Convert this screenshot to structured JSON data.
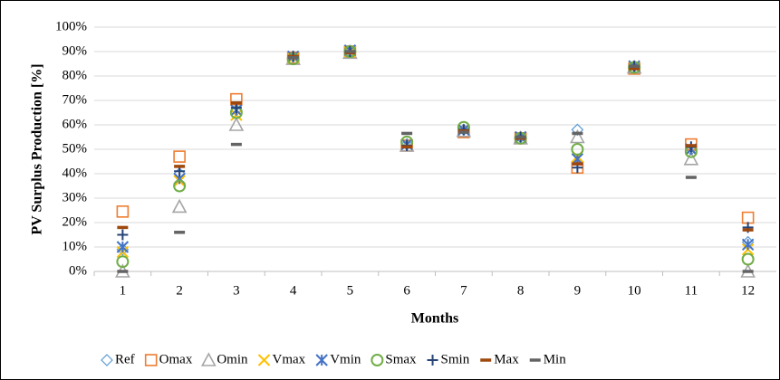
{
  "chart_data": {
    "type": "scatter",
    "y_label": "PV Surplus Production [%]",
    "x_label": "Months",
    "categories": [
      "1",
      "2",
      "3",
      "4",
      "5",
      "6",
      "7",
      "8",
      "9",
      "10",
      "11",
      "12"
    ],
    "ylim": [
      0,
      100
    ],
    "yticks": [
      {
        "value": 0,
        "label": "0%"
      },
      {
        "value": 10,
        "label": "10%"
      },
      {
        "value": 20,
        "label": "20%"
      },
      {
        "value": 30,
        "label": "30%"
      },
      {
        "value": 40,
        "label": "40%"
      },
      {
        "value": 50,
        "label": "50%"
      },
      {
        "value": 60,
        "label": "60%"
      },
      {
        "value": 70,
        "label": "70%"
      },
      {
        "value": 80,
        "label": "80%"
      },
      {
        "value": 90,
        "label": "90%"
      },
      {
        "value": 100,
        "label": "100%"
      }
    ],
    "grid": true,
    "legend": "bottom",
    "series": [
      {
        "name": "Ref",
        "color": "#5b9bd5",
        "marker": "diamond",
        "values": [
          9,
          40,
          66,
          88,
          90,
          52,
          58,
          55,
          58,
          84,
          50,
          12
        ]
      },
      {
        "name": "Omax",
        "color": "#ed7d31",
        "marker": "square",
        "values": [
          24.5,
          47,
          70.5,
          87.5,
          90,
          51.5,
          57,
          54.5,
          42.5,
          83,
          52,
          22
        ]
      },
      {
        "name": "Omin",
        "color": "#a5a5a5",
        "marker": "triangle",
        "values": [
          0,
          26.5,
          60,
          87,
          89.5,
          51.5,
          57.5,
          54.5,
          55,
          83.5,
          46,
          0
        ]
      },
      {
        "name": "Vmax",
        "color": "#ffc000",
        "marker": "x",
        "values": [
          8,
          37,
          64,
          87.5,
          90,
          52,
          58,
          55,
          47,
          84,
          50,
          9
        ]
      },
      {
        "name": "Vmin",
        "color": "#4472c4",
        "marker": "asterisk",
        "values": [
          10,
          38,
          66,
          88,
          90.5,
          52,
          58,
          55,
          46,
          84,
          50,
          11
        ]
      },
      {
        "name": "Smax",
        "color": "#70ad47",
        "marker": "circle",
        "values": [
          4,
          35,
          65,
          87,
          90,
          53,
          59,
          54.5,
          50,
          83.5,
          49,
          5
        ]
      },
      {
        "name": "Smin",
        "color": "#264478",
        "marker": "plus",
        "values": [
          15,
          41,
          67,
          88,
          90,
          51.5,
          58,
          55,
          42.5,
          84,
          51,
          18
        ]
      },
      {
        "name": "Max",
        "color": "#9e480e",
        "marker": "dash",
        "values": [
          18,
          43,
          69,
          88,
          89.5,
          51,
          57.5,
          54.5,
          44,
          83,
          51.5,
          17
        ]
      },
      {
        "name": "Min",
        "color": "#636363",
        "marker": "dash",
        "values": [
          0,
          16,
          52,
          87.5,
          90,
          56.5,
          57,
          55,
          56.5,
          84,
          38.5,
          0
        ]
      }
    ]
  }
}
